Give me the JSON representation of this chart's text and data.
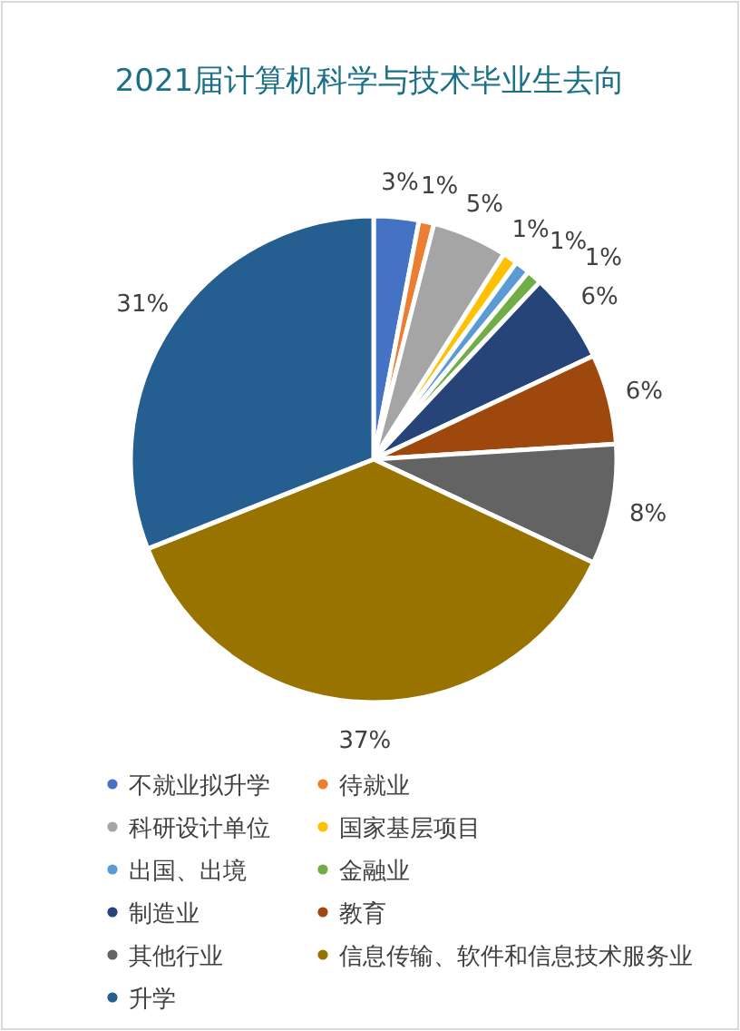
{
  "chart_data": {
    "type": "pie",
    "title": "2021届计算机科学与技术毕业生去向",
    "categories": [
      "不就业拟升学",
      "待就业",
      "科研设计单位",
      "国家基层项目",
      "出国、出境",
      "金融业",
      "制造业",
      "教育",
      "其他行业",
      "信息传输、软件和信息技术服务业",
      "升学"
    ],
    "values": [
      3,
      1,
      5,
      1,
      1,
      1,
      6,
      6,
      8,
      37,
      31
    ],
    "colors": [
      "#4472c4",
      "#ed7d31",
      "#a5a5a5",
      "#ffc000",
      "#5b9bd5",
      "#70ad47",
      "#264478",
      "#9e480e",
      "#636363",
      "#997300",
      "#255e91"
    ],
    "value_labels": [
      "3%",
      "1%",
      "5%",
      "1%",
      "1%",
      "1%",
      "6%",
      "6%",
      "8%",
      "37%",
      "31%"
    ],
    "legend": "bottom"
  }
}
